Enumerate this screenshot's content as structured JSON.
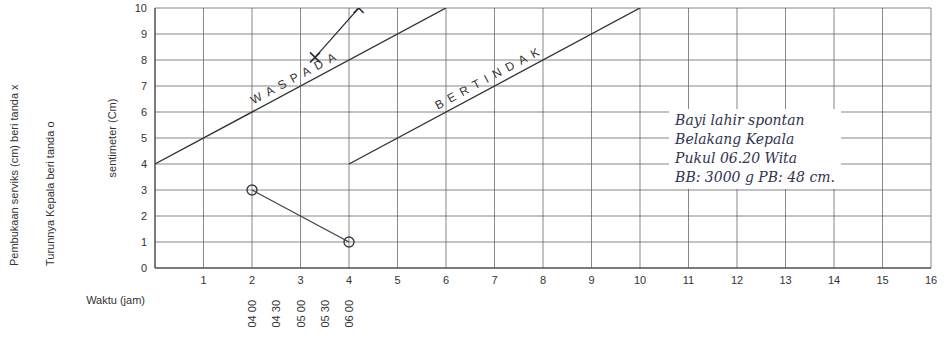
{
  "chart_data": {
    "type": "line",
    "x_label": "Waktu (jam)",
    "y_label": "sentimeter (Cm)",
    "xlim": [
      0,
      16
    ],
    "xticks": [
      1,
      2,
      3,
      4,
      5,
      6,
      7,
      8,
      9,
      10,
      11,
      12,
      13,
      14,
      15,
      16
    ],
    "ylim": [
      0,
      10
    ],
    "yticks": [
      0,
      1,
      2,
      3,
      4,
      5,
      6,
      7,
      8,
      9,
      10
    ],
    "grid": true,
    "series": [
      {
        "name": "WASPADA",
        "x": [
          0,
          6
        ],
        "values": [
          4,
          10
        ],
        "color": "#333333",
        "line_style": "solid",
        "marker": "none"
      },
      {
        "name": "BERTINDAK",
        "x": [
          4,
          10
        ],
        "values": [
          4,
          10
        ],
        "color": "#333333",
        "line_style": "solid",
        "marker": "none"
      },
      {
        "name": "Pembukaan serviks (cm) beri tanda x",
        "x": [
          3.3,
          4.2
        ],
        "values": [
          8.1,
          10
        ],
        "color": "#2b2b3a",
        "marker": "x"
      },
      {
        "name": "Turunnya Kepala beri tanda o",
        "x": [
          2,
          4
        ],
        "values": [
          3,
          1
        ],
        "color": "#3a3a4a",
        "marker": "o"
      }
    ],
    "time_labels": {
      "x": [
        2,
        2.5,
        3,
        3.5,
        4
      ],
      "labels": [
        "04 00",
        "04 30",
        "05 00",
        "05 30",
        "06 00"
      ]
    },
    "annotation": [
      "Bayi lahir spontan",
      "Belakang Kepala",
      "Pukul 06.20 Wita",
      "BB: 3000 g  PB: 48 cm."
    ]
  }
}
